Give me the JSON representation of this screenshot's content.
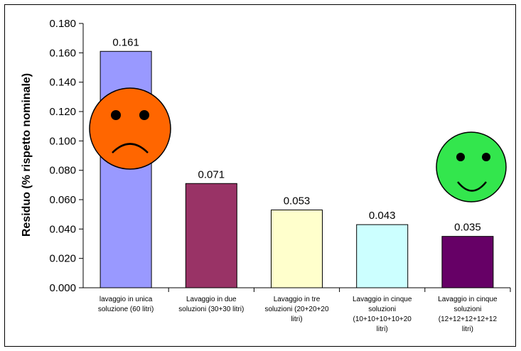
{
  "chart_data": {
    "type": "bar",
    "title": "",
    "xlabel": "",
    "ylabel": "Residuo (% rispetto nominale)",
    "ylim": [
      0,
      0.18
    ],
    "ytick_step": 0.02,
    "ytick_decimals": 3,
    "grid": false,
    "legend": "none",
    "categories": [
      [
        "lavaggio in unica",
        "soluzione (60 litri)"
      ],
      [
        "Lavaggio in due",
        "soluzioni (30+30 litri)"
      ],
      [
        "Lavaggio in tre",
        "soluzioni (20+20+20",
        "litri)"
      ],
      [
        "Lavaggio in cinque",
        "soluzioni",
        "(10+10+10+10+20",
        "litri)"
      ],
      [
        "Lavaggio in cinque",
        "soluzioni",
        "(12+12+12+12+12",
        "litri)"
      ]
    ],
    "values": [
      0.161,
      0.071,
      0.053,
      0.043,
      0.035
    ],
    "data_labels": [
      "0.161",
      "0.071",
      "0.053",
      "0.043",
      "0.035"
    ],
    "bar_colors": [
      "#9999FF",
      "#993366",
      "#FFFFCC",
      "#CCFFFF",
      "#660066"
    ],
    "annotations": [
      {
        "type": "sad-face",
        "color": "#FF6600"
      },
      {
        "type": "smiley-face",
        "color": "#33E64D"
      }
    ]
  }
}
